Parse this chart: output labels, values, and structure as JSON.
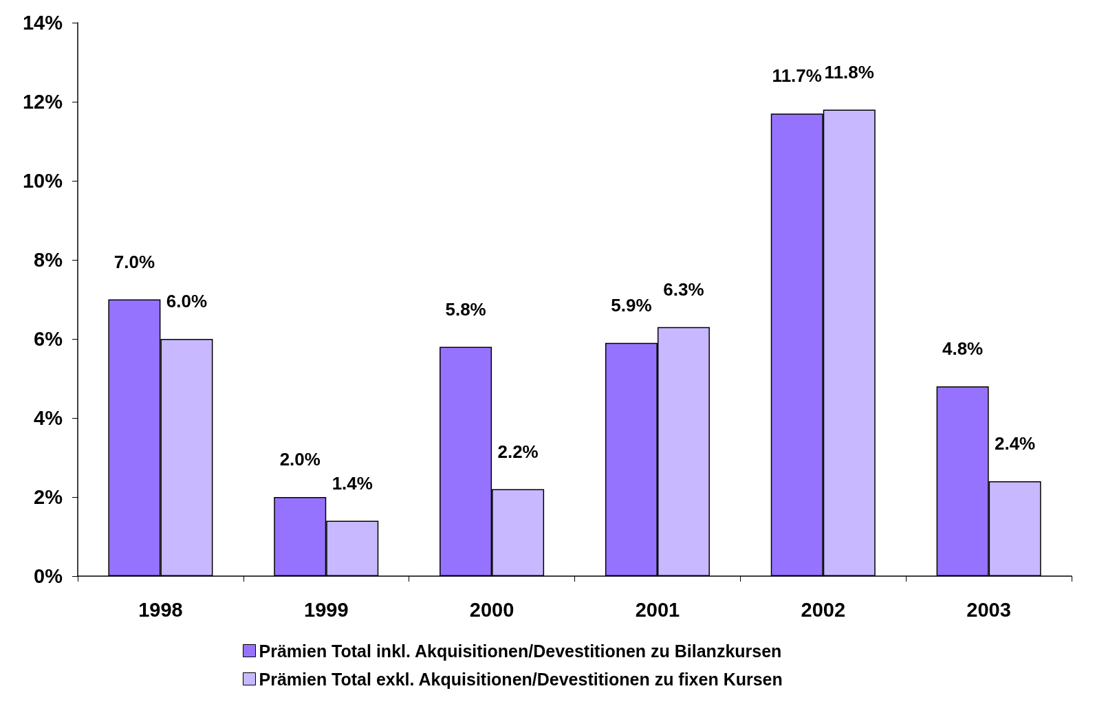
{
  "chart_data": {
    "type": "bar",
    "categories": [
      "1998",
      "1999",
      "2000",
      "2001",
      "2002",
      "2003"
    ],
    "series": [
      {
        "name": "Prämien Total inkl. Akquisitionen/Devestitionen zu Bilanzkursen",
        "color": "#9673ff",
        "values": [
          7.0,
          2.0,
          5.8,
          5.9,
          11.7,
          4.8
        ],
        "value_labels": [
          "7.0%",
          "2.0%",
          "5.8%",
          "5.9%",
          "11.7%",
          "4.8%"
        ]
      },
      {
        "name": "Prämien Total exkl. Akquisitionen/Devestitionen zu fixen Kursen",
        "color": "#c8b8ff",
        "values": [
          6.0,
          1.4,
          2.2,
          6.3,
          11.8,
          2.4
        ],
        "value_labels": [
          "6.0%",
          "1.4%",
          "2.2%",
          "6.3%",
          "11.8%",
          "2.4%"
        ]
      }
    ],
    "ylim": [
      0,
      14
    ],
    "yticks": [
      {
        "value": 0,
        "label": "0%"
      },
      {
        "value": 2,
        "label": "2%"
      },
      {
        "value": 4,
        "label": "4%"
      },
      {
        "value": 6,
        "label": "6%"
      },
      {
        "value": 8,
        "label": "8%"
      },
      {
        "value": 10,
        "label": "10%"
      },
      {
        "value": 12,
        "label": "12%"
      },
      {
        "value": 14,
        "label": "14%"
      }
    ],
    "grid": false,
    "legend": "bottom"
  }
}
